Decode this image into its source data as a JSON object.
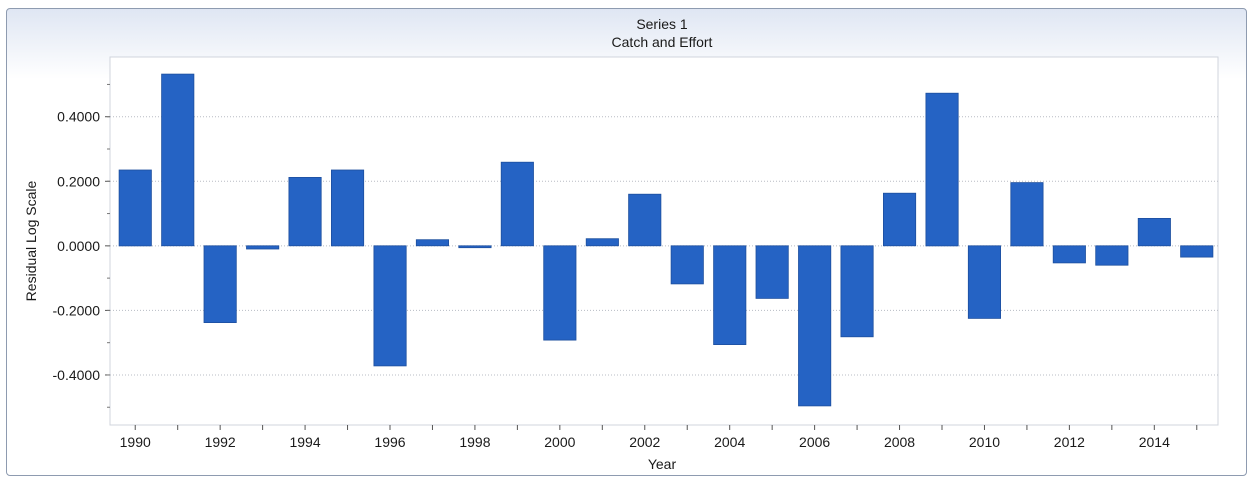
{
  "chart_data": {
    "type": "bar",
    "title": "Series 1",
    "subtitle": "Catch and Effort",
    "xlabel": "Year",
    "ylabel": "Residual Log Scale",
    "categories": [
      1990,
      1991,
      1992,
      1993,
      1994,
      1995,
      1996,
      1997,
      1998,
      1999,
      2000,
      2001,
      2002,
      2003,
      2004,
      2005,
      2006,
      2007,
      2008,
      2009,
      2010,
      2011,
      2012,
      2013,
      2014,
      2015
    ],
    "values": [
      0.235,
      0.532,
      -0.238,
      -0.01,
      0.212,
      0.235,
      -0.372,
      0.019,
      -0.006,
      0.259,
      -0.292,
      0.022,
      0.16,
      -0.118,
      -0.306,
      -0.163,
      -0.496,
      -0.282,
      0.163,
      0.473,
      -0.225,
      0.196,
      -0.053,
      -0.06,
      0.085,
      -0.035
    ],
    "x_tick_labels": [
      "1990",
      "1992",
      "1994",
      "1996",
      "1998",
      "2000",
      "2002",
      "2004",
      "2006",
      "2008",
      "2010",
      "2012",
      "2014"
    ],
    "y_tick_labels": [
      "0.4000",
      "0.2000",
      "0.0000",
      "-0.2000",
      "-0.4000"
    ],
    "y_ticks": [
      0.4,
      0.2,
      0.0,
      -0.2,
      -0.4
    ],
    "ylim": [
      -0.555,
      0.585
    ],
    "grid": true,
    "bar_color": "#2563c4"
  }
}
